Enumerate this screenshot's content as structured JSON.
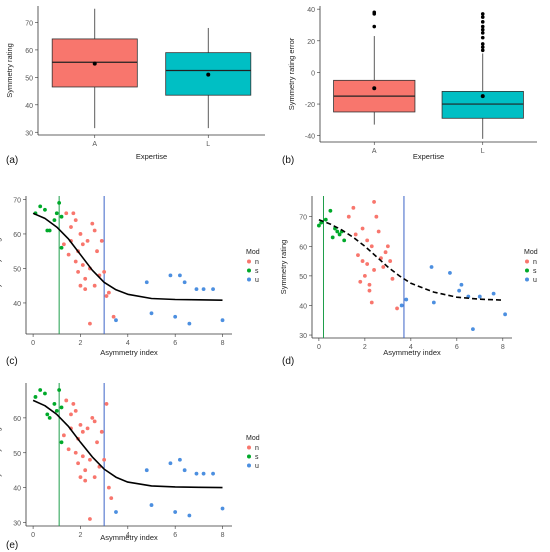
{
  "figure": {
    "background": "#ffffff",
    "colors": {
      "A": "#F8766D",
      "L": "#00BFC4",
      "n": "#F8766D",
      "s": "#00A92A",
      "u": "#4C8FE0",
      "vline_green": "#1E9E4A",
      "vline_blue": "#3B63C7",
      "axis": "#333333",
      "tick": "#555555"
    }
  },
  "chart_data": [
    {
      "panel_label": "(a)",
      "type": "boxplot",
      "xlabel": "Expertise",
      "ylabel": "Symmetry rating",
      "categories": [
        "A",
        "L"
      ],
      "ylim": [
        29,
        76
      ],
      "yticks": [
        30,
        40,
        50,
        60,
        70
      ],
      "boxes": [
        {
          "name": "A",
          "whisker_low": 31.5,
          "q1": 46.5,
          "median": 55.5,
          "q3": 64.0,
          "whisker_high": 75.0,
          "mean": 55.0,
          "outliers": []
        },
        {
          "name": "L",
          "whisker_low": 31.5,
          "q1": 43.5,
          "median": 52.5,
          "q3": 59.0,
          "whisker_high": 68.0,
          "mean": 51.0,
          "outliers": []
        }
      ]
    },
    {
      "panel_label": "(b)",
      "type": "boxplot",
      "xlabel": "Expertise",
      "ylabel": "Symmetry rating error",
      "categories": [
        "A",
        "L"
      ],
      "ylim": [
        -44,
        42
      ],
      "yticks": [
        -40,
        -20,
        0,
        20,
        40
      ],
      "boxes": [
        {
          "name": "A",
          "whisker_low": -33,
          "q1": -25,
          "median": -15,
          "q3": -5,
          "whisker_high": 23,
          "mean": -10,
          "outliers": [
            29,
            37,
            38
          ]
        },
        {
          "name": "L",
          "whisker_low": -42,
          "q1": -29,
          "median": -20,
          "q3": -12,
          "whisker_high": 12,
          "mean": -15,
          "outliers": [
            14,
            16,
            18,
            22,
            25,
            27,
            29,
            32,
            35,
            37
          ]
        }
      ]
    },
    {
      "panel_label": "(c)",
      "type": "scatter",
      "xlabel": "Asymmetry index",
      "ylabel": "Symmetry rating",
      "xlim": [
        -0.3,
        8.4
      ],
      "ylim": [
        31,
        71
      ],
      "xticks": [
        0,
        2,
        4,
        6,
        8
      ],
      "yticks": [
        40,
        50,
        60,
        70
      ],
      "legend_title": "Mod",
      "legend": [
        "n",
        "s",
        "u"
      ],
      "vlines": [
        {
          "x": 1.1,
          "color": "green"
        },
        {
          "x": 3.0,
          "color": "blue"
        }
      ],
      "curve": {
        "style": "solid",
        "x": [
          0,
          0.5,
          1,
          1.5,
          2,
          2.5,
          3,
          3.5,
          4,
          5,
          6,
          7,
          8
        ],
        "y": [
          66,
          64.5,
          62,
          58.5,
          54,
          49.5,
          46,
          43.8,
          42.5,
          41.3,
          41.0,
          40.9,
          40.8
        ]
      },
      "series": [
        {
          "name": "s",
          "points": [
            [
              0.1,
              66
            ],
            [
              0.3,
              68
            ],
            [
              0.5,
              67
            ],
            [
              0.6,
              61
            ],
            [
              0.7,
              61
            ],
            [
              0.9,
              64
            ],
            [
              1.0,
              66
            ],
            [
              1.1,
              69
            ],
            [
              1.2,
              65
            ],
            [
              1.2,
              56
            ]
          ]
        },
        {
          "name": "n",
          "points": [
            [
              1.3,
              57
            ],
            [
              1.4,
              66
            ],
            [
              1.5,
              54
            ],
            [
              1.6,
              58
            ],
            [
              1.6,
              62
            ],
            [
              1.7,
              66
            ],
            [
              1.8,
              64
            ],
            [
              1.8,
              52
            ],
            [
              1.9,
              49
            ],
            [
              1.9,
              55
            ],
            [
              2.0,
              60
            ],
            [
              2.0,
              45
            ],
            [
              2.1,
              57
            ],
            [
              2.1,
              51
            ],
            [
              2.2,
              47
            ],
            [
              2.3,
              58
            ],
            [
              2.4,
              50
            ],
            [
              2.4,
              34
            ],
            [
              2.5,
              63
            ],
            [
              2.6,
              45
            ],
            [
              2.6,
              61
            ],
            [
              2.7,
              55
            ],
            [
              2.8,
              48
            ],
            [
              2.9,
              58
            ],
            [
              3.0,
              49
            ],
            [
              3.1,
              42
            ],
            [
              3.2,
              43
            ],
            [
              3.4,
              36
            ],
            [
              2.2,
              44
            ]
          ]
        },
        {
          "name": "u",
          "points": [
            [
              3.5,
              35
            ],
            [
              4.8,
              46
            ],
            [
              5.0,
              37
            ],
            [
              5.8,
              48
            ],
            [
              6.0,
              36
            ],
            [
              6.2,
              48
            ],
            [
              6.4,
              46
            ],
            [
              6.6,
              34
            ],
            [
              6.9,
              44
            ],
            [
              7.2,
              44
            ],
            [
              7.6,
              44
            ],
            [
              8.0,
              35
            ]
          ]
        }
      ]
    },
    {
      "panel_label": "(d)",
      "type": "scatter",
      "xlabel": "Asymmetry index",
      "ylabel": "Symmetry rating",
      "xlim": [
        -0.3,
        8.4
      ],
      "ylim": [
        29,
        77
      ],
      "xticks": [
        0,
        2,
        4,
        6,
        8
      ],
      "yticks": [
        30,
        40,
        50,
        60,
        70
      ],
      "legend_title": "Mod",
      "legend": [
        "n",
        "s",
        "u"
      ],
      "vlines": [
        {
          "x": 0.2,
          "color": "green"
        },
        {
          "x": 3.7,
          "color": "blue"
        }
      ],
      "curve": {
        "style": "dashed",
        "x": [
          0,
          0.5,
          1,
          1.5,
          2,
          2.5,
          3,
          3.5,
          4,
          5,
          6,
          7,
          8
        ],
        "y": [
          69,
          67.5,
          65.5,
          63,
          60,
          56.5,
          53,
          50,
          47.5,
          44.5,
          42.8,
          42.1,
          41.8
        ]
      },
      "series": [
        {
          "name": "s",
          "points": [
            [
              0.0,
              67
            ],
            [
              0.1,
              68
            ],
            [
              0.3,
              69
            ],
            [
              0.5,
              72
            ],
            [
              0.6,
              63
            ],
            [
              0.7,
              66
            ],
            [
              0.8,
              65
            ],
            [
              0.9,
              64
            ],
            [
              1.0,
              65
            ],
            [
              1.1,
              62
            ]
          ]
        },
        {
          "name": "n",
          "points": [
            [
              1.3,
              70
            ],
            [
              1.5,
              73
            ],
            [
              1.6,
              64
            ],
            [
              1.7,
              57
            ],
            [
              1.8,
              48
            ],
            [
              1.9,
              66
            ],
            [
              1.9,
              55
            ],
            [
              2.0,
              50
            ],
            [
              2.1,
              62
            ],
            [
              2.1,
              54
            ],
            [
              2.2,
              45
            ],
            [
              2.3,
              60
            ],
            [
              2.3,
              41
            ],
            [
              2.4,
              75
            ],
            [
              2.4,
              52
            ],
            [
              2.5,
              70
            ],
            [
              2.6,
              65
            ],
            [
              2.7,
              56
            ],
            [
              2.8,
              53
            ],
            [
              2.9,
              58
            ],
            [
              3.0,
              60
            ],
            [
              3.1,
              55
            ],
            [
              3.2,
              49
            ],
            [
              3.4,
              39
            ],
            [
              2.2,
              47
            ]
          ]
        },
        {
          "name": "u",
          "points": [
            [
              3.6,
              40
            ],
            [
              3.8,
              42
            ],
            [
              4.9,
              53
            ],
            [
              5.0,
              41
            ],
            [
              5.7,
              51
            ],
            [
              6.1,
              45
            ],
            [
              6.2,
              47
            ],
            [
              6.5,
              43
            ],
            [
              6.7,
              32
            ],
            [
              7.0,
              43
            ],
            [
              7.6,
              44
            ],
            [
              8.1,
              37
            ]
          ]
        }
      ]
    },
    {
      "panel_label": "(e)",
      "type": "scatter",
      "xlabel": "Asymmetry index",
      "ylabel": "Symmetry rating",
      "xlim": [
        -0.3,
        8.4
      ],
      "ylim": [
        29,
        70
      ],
      "xticks": [
        0,
        2,
        4,
        6,
        8
      ],
      "yticks": [
        30,
        40,
        50,
        60
      ],
      "legend_title": "Mod",
      "legend": [
        "n",
        "s",
        "u"
      ],
      "vlines": [
        {
          "x": 1.1,
          "color": "green"
        },
        {
          "x": 3.0,
          "color": "blue"
        }
      ],
      "curve": {
        "style": "solid",
        "x": [
          0,
          0.5,
          1,
          1.5,
          2,
          2.5,
          3,
          3.5,
          4,
          5,
          6,
          7,
          8
        ],
        "y": [
          65,
          63.5,
          61,
          57.5,
          53,
          48.8,
          45.3,
          43,
          41.6,
          40.5,
          40.2,
          40.1,
          40.0
        ]
      },
      "series": [
        {
          "name": "s",
          "points": [
            [
              0.1,
              66
            ],
            [
              0.3,
              68
            ],
            [
              0.5,
              67
            ],
            [
              0.6,
              61
            ],
            [
              0.7,
              60
            ],
            [
              0.9,
              64
            ],
            [
              1.0,
              62
            ],
            [
              1.1,
              68
            ],
            [
              1.2,
              63
            ],
            [
              1.2,
              53
            ]
          ]
        },
        {
          "name": "n",
          "points": [
            [
              1.3,
              55
            ],
            [
              1.4,
              65
            ],
            [
              1.5,
              51
            ],
            [
              1.6,
              57
            ],
            [
              1.6,
              61
            ],
            [
              1.7,
              64
            ],
            [
              1.8,
              62
            ],
            [
              1.8,
              50
            ],
            [
              1.9,
              47
            ],
            [
              1.9,
              54
            ],
            [
              2.0,
              58
            ],
            [
              2.0,
              43
            ],
            [
              2.1,
              56
            ],
            [
              2.1,
              49
            ],
            [
              2.2,
              45
            ],
            [
              2.3,
              57
            ],
            [
              2.4,
              48
            ],
            [
              2.4,
              31
            ],
            [
              2.5,
              60
            ],
            [
              2.6,
              43
            ],
            [
              2.6,
              59
            ],
            [
              2.7,
              53
            ],
            [
              2.8,
              46
            ],
            [
              2.9,
              56
            ],
            [
              3.0,
              48
            ],
            [
              3.1,
              64
            ],
            [
              3.2,
              40
            ],
            [
              3.3,
              37
            ],
            [
              2.2,
              42
            ]
          ]
        },
        {
          "name": "u",
          "points": [
            [
              3.5,
              33
            ],
            [
              4.8,
              45
            ],
            [
              5.0,
              35
            ],
            [
              5.8,
              47
            ],
            [
              6.0,
              33
            ],
            [
              6.2,
              48
            ],
            [
              6.4,
              45
            ],
            [
              6.6,
              32
            ],
            [
              6.9,
              44
            ],
            [
              7.2,
              44
            ],
            [
              7.6,
              44
            ],
            [
              8.0,
              34
            ]
          ]
        }
      ]
    }
  ]
}
